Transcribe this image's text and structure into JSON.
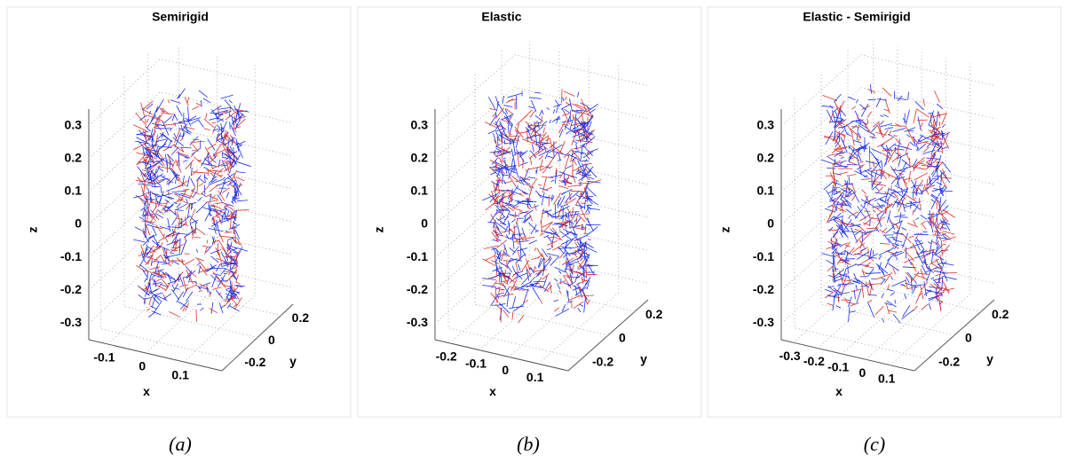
{
  "chart_data": [
    {
      "type": "quiver3d",
      "title": "Semirigid",
      "xlabel": "x",
      "ylabel": "y",
      "zlabel": "z",
      "caption": "(a)",
      "xlim": [
        -0.15,
        0.2
      ],
      "ylim": [
        -0.3,
        0.3
      ],
      "zlim": [
        -0.35,
        0.35
      ],
      "xticks": [
        -0.1,
        0,
        0.1
      ],
      "yticks": [
        -0.2,
        0,
        0.2
      ],
      "zticks": [
        -0.3,
        -0.2,
        -0.1,
        0,
        0.1,
        0.2,
        0.3
      ],
      "grid": true
    },
    {
      "type": "quiver3d",
      "title": "Elastic",
      "xlabel": "x",
      "ylabel": "y",
      "zlabel": "z",
      "caption": "(b)",
      "xlim": [
        -0.25,
        0.2
      ],
      "ylim": [
        -0.3,
        0.3
      ],
      "zlim": [
        -0.35,
        0.35
      ],
      "xticks": [
        -0.2,
        -0.1,
        0,
        0.1
      ],
      "yticks": [
        -0.2,
        0,
        0.2
      ],
      "zticks": [
        -0.3,
        -0.2,
        -0.1,
        0,
        0.1,
        0.2,
        0.3
      ],
      "grid": true
    },
    {
      "type": "quiver3d",
      "title": "Elastic - Semirigid",
      "xlabel": "x",
      "ylabel": "y",
      "zlabel": "z",
      "caption": "(c)",
      "xlim": [
        -0.35,
        0.2
      ],
      "ylim": [
        -0.3,
        0.3
      ],
      "zlim": [
        -0.35,
        0.35
      ],
      "xticks": [
        -0.3,
        -0.2,
        -0.1,
        0,
        0.1
      ],
      "yticks": [
        -0.2,
        0,
        0.2
      ],
      "zticks": [
        -0.3,
        -0.2,
        -0.1,
        0,
        0.1,
        0.2,
        0.3
      ],
      "grid": true
    }
  ]
}
